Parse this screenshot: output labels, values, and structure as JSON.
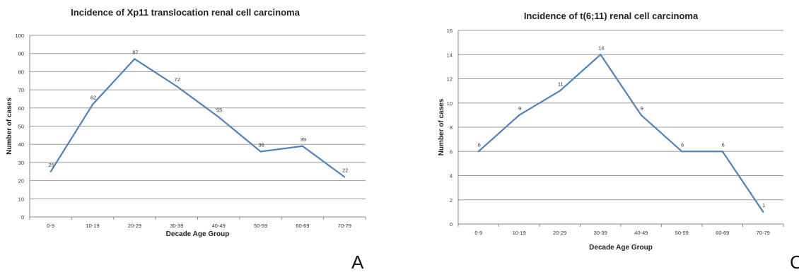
{
  "panel_letters": [
    "A",
    "C"
  ],
  "chart_data": [
    {
      "type": "line",
      "title": "Incidence of Xp11 translocation renal cell carcinoma",
      "xlabel": "Decade Age Group",
      "ylabel": "Number of cases",
      "categories": [
        "0-9",
        "10-19",
        "20-29",
        "30-39",
        "40-49",
        "50-59",
        "60-69",
        "70-79"
      ],
      "series": [
        {
          "values": [
            25,
            62,
            87,
            72,
            55,
            36,
            39,
            22
          ]
        }
      ],
      "data_labels": [
        "25",
        "62",
        "87",
        "72",
        "55",
        "36",
        "39",
        "22"
      ],
      "ylim": [
        0,
        100
      ],
      "yticks": [
        0,
        10,
        20,
        30,
        40,
        50,
        60,
        70,
        80,
        90,
        100
      ],
      "grid": true,
      "legend": "none",
      "line_color": "#4f81bd",
      "grid_color": "#9a9a9a"
    },
    {
      "type": "line",
      "title": "Incidence of t(6;11) renal cell carcinoma",
      "xlabel": "Decade Age Group",
      "ylabel": "Number of cases",
      "categories": [
        "0-9",
        "10-19",
        "20-29",
        "30-39",
        "40-49",
        "50-59",
        "60-69",
        "70-79"
      ],
      "series": [
        {
          "values": [
            6,
            9,
            11,
            14,
            9,
            6,
            6,
            1
          ]
        }
      ],
      "data_labels": [
        "6",
        "9",
        "11",
        "14",
        "9",
        "6",
        "6",
        "1"
      ],
      "ylim": [
        0,
        16
      ],
      "yticks": [
        0,
        2,
        4,
        6,
        8,
        10,
        12,
        14,
        16
      ],
      "grid": true,
      "legend": "none",
      "line_color": "#4f81bd",
      "grid_color": "#9a9a9a"
    }
  ]
}
